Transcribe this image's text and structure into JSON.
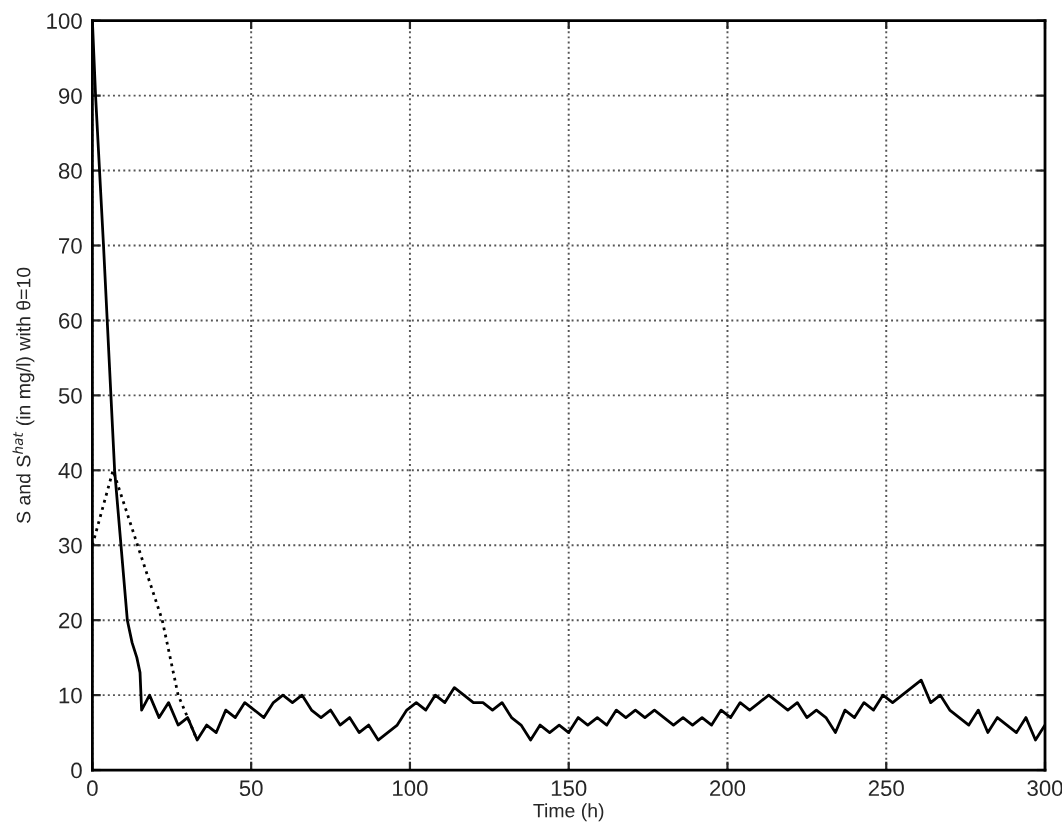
{
  "chart_data": {
    "type": "line",
    "xlabel": "Time (h)",
    "ylabel": "S and S$^{hat}$ (in mg/l) with θ=10",
    "xlim": [
      0,
      300
    ],
    "xticks": [
      0,
      50,
      100,
      150,
      200,
      250,
      300
    ],
    "ylim": [
      0,
      100
    ],
    "yticks": [
      0,
      10,
      20,
      30,
      40,
      50,
      60,
      70,
      80,
      90,
      100
    ],
    "grid": true,
    "series": [
      {
        "color": "#000000",
        "line_style": "solid",
        "x": [
          0,
          1,
          3.5,
          7,
          11,
          12.5,
          14,
          15,
          15.5,
          18,
          21,
          24,
          27,
          30,
          33,
          36,
          39,
          42,
          45,
          48,
          51,
          54,
          57,
          60,
          63,
          66,
          69,
          72,
          75,
          78,
          81,
          84,
          87,
          90,
          93,
          96,
          99,
          102,
          105,
          108,
          111,
          114,
          117,
          120,
          123,
          126,
          129,
          132,
          135,
          138,
          141,
          144,
          147,
          150,
          153,
          156,
          159,
          162,
          165,
          168,
          171,
          174,
          177,
          180,
          183,
          186,
          189,
          192,
          195,
          198,
          201,
          204,
          207,
          210,
          213,
          216,
          219,
          222,
          225,
          228,
          231,
          234,
          237,
          240,
          243,
          246,
          249,
          252,
          255,
          258,
          261,
          264,
          267,
          270,
          273,
          276,
          279,
          282,
          285,
          288,
          291,
          294,
          297,
          300
        ],
        "values": [
          100,
          90,
          70,
          40,
          20,
          17,
          15,
          13,
          8,
          10,
          7,
          9,
          6,
          7,
          4,
          6,
          5,
          8,
          7,
          9,
          8,
          7,
          9,
          10,
          9,
          10,
          8,
          7,
          8,
          6,
          7,
          5,
          6,
          4,
          5,
          6,
          8,
          9,
          8,
          10,
          9,
          11,
          10,
          9,
          9,
          8,
          9,
          7,
          6,
          4,
          6,
          5,
          6,
          5,
          7,
          6,
          7,
          6,
          8,
          7,
          8,
          7,
          8,
          7,
          6,
          7,
          6,
          7,
          6,
          8,
          7,
          9,
          8,
          9,
          10,
          9,
          8,
          9,
          7,
          8,
          7,
          5,
          8,
          7,
          9,
          8,
          10,
          9,
          10,
          11,
          12,
          9,
          10,
          8,
          7,
          6,
          8,
          5,
          7,
          6,
          5,
          7,
          4,
          6
        ]
      },
      {
        "color": "#000000",
        "line_style": "dotted",
        "x": [
          0,
          6.5,
          15,
          22,
          27,
          33
        ],
        "values": [
          30,
          40,
          29,
          20,
          10,
          4
        ]
      }
    ]
  }
}
